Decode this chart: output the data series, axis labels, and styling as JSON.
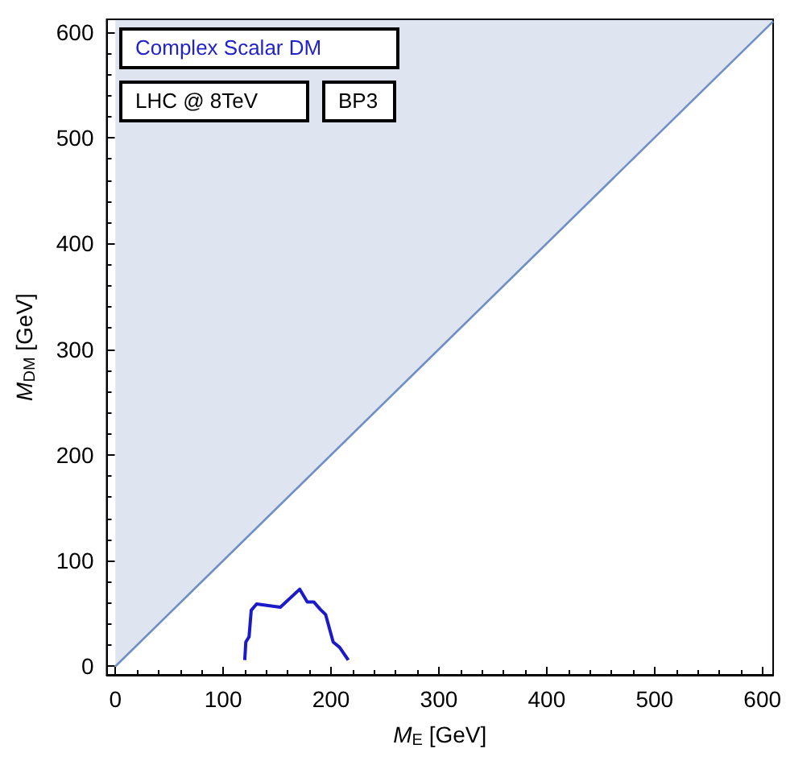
{
  "chart_data": {
    "type": "line",
    "xlabel": "M$_{E}$ [GeV]",
    "ylabel": "M$_{DM}$ [GeV]",
    "annotations": [
      "Complex Scalar DM",
      "LHC @ 8TeV",
      "BP3"
    ],
    "series": [
      {
        "x": [
          0,
          610
        ],
        "values": [
          0,
          610
        ],
        "lower": [
          0,
          610
        ],
        "upper": [
          612,
          612
        ],
        "color": "#6f8fc4"
      },
      {
        "x": [
          120,
          121,
          124,
          126,
          131,
          153,
          171,
          178,
          184,
          190,
          195,
          202,
          208,
          216
        ],
        "values": [
          6,
          23,
          28,
          53,
          59,
          56,
          73,
          61,
          61,
          54,
          49,
          23,
          18,
          6
        ],
        "color": "#1a1ac8"
      }
    ],
    "xlim": [
      -8,
      610
    ],
    "ylim": [
      -8,
      612
    ],
    "xticks": [
      0,
      100,
      200,
      300,
      400,
      500,
      600
    ],
    "yticks": [
      0,
      100,
      200,
      300,
      400,
      500,
      600
    ],
    "marker": "none"
  }
}
